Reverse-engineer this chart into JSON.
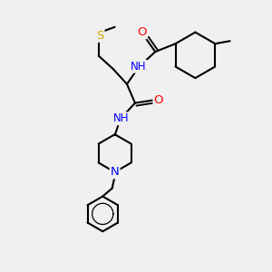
{
  "background_color": "#f0f0f0",
  "atom_colors": {
    "O": "#ff0000",
    "N": "#0000ff",
    "S": "#ccaa00",
    "C": "#000000",
    "H": "#006060"
  },
  "bond_color": "#000000",
  "bond_width": 1.5,
  "figsize": [
    3.0,
    3.0
  ],
  "dpi": 100
}
